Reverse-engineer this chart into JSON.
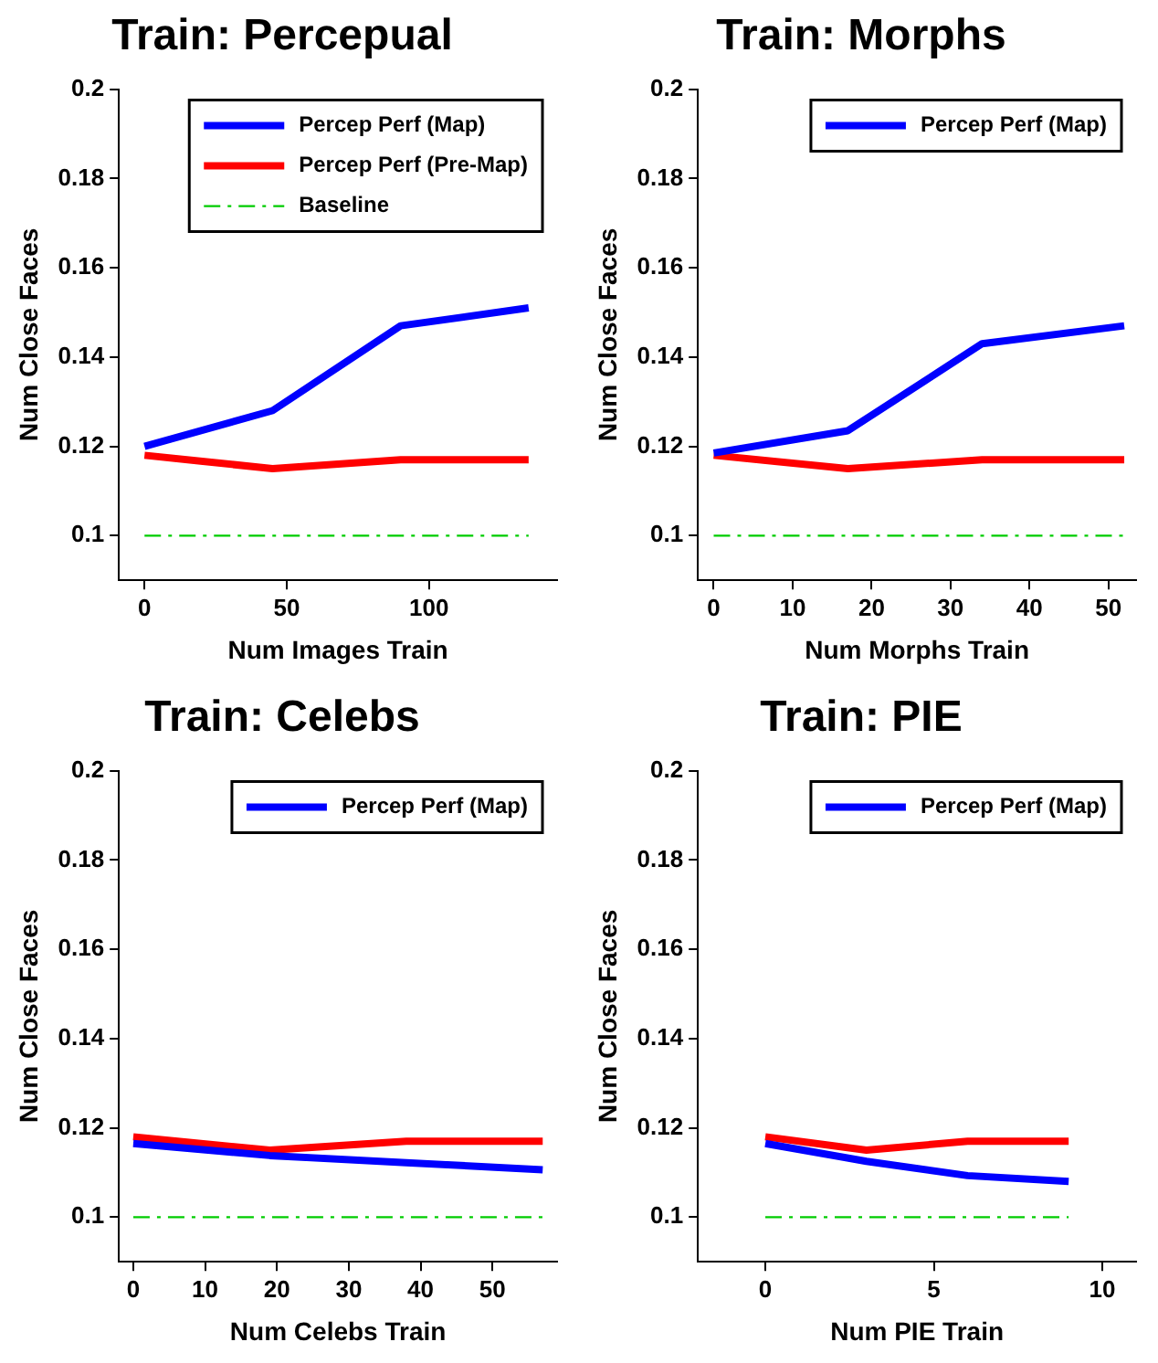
{
  "chart_data": [
    {
      "type": "line",
      "title": "Train: Percepual",
      "xlabel": "Num Images Train",
      "ylabel": "Num Close Faces",
      "xlim": [
        -9,
        145
      ],
      "xticks": [
        0,
        50,
        100
      ],
      "ylim": [
        0.09,
        0.2
      ],
      "yticks": [
        0.1,
        0.12,
        0.14,
        0.16,
        0.18,
        0.2
      ],
      "grid": false,
      "legend": "top right",
      "marker": "none",
      "series": [
        {
          "name": "Percep Perf (Map)",
          "color": "#0000ff",
          "x": [
            0,
            45,
            90,
            135
          ],
          "values": [
            0.12,
            0.128,
            0.147,
            0.151
          ]
        },
        {
          "name": "Percep Perf (Pre-Map)",
          "color": "#ff0000",
          "x": [
            0,
            45,
            90,
            135
          ],
          "values": [
            0.118,
            0.115,
            0.117,
            0.117
          ]
        },
        {
          "name": "Baseline",
          "color": "#00cc00",
          "x": [
            0,
            135
          ],
          "values": [
            0.1,
            0.1
          ],
          "line_style": "dashed"
        }
      ]
    },
    {
      "type": "line",
      "title": "Train: Morphs",
      "xlabel": "Num Morphs Train",
      "ylabel": "Num Close Faces",
      "xlim": [
        -2,
        53.5
      ],
      "xticks": [
        0,
        10,
        20,
        30,
        40,
        50
      ],
      "ylim": [
        0.09,
        0.2
      ],
      "yticks": [
        0.1,
        0.12,
        0.14,
        0.16,
        0.18,
        0.2
      ],
      "grid": false,
      "legend": "top right",
      "marker": "none",
      "series": [
        {
          "name": "Percep Perf (Map)",
          "color": "#0000ff",
          "x": [
            0,
            17,
            34,
            52
          ],
          "values": [
            0.1185,
            0.1235,
            0.143,
            0.147
          ]
        },
        {
          "color": "#ff0000",
          "x": [
            0,
            17,
            34,
            52
          ],
          "values": [
            0.118,
            0.115,
            0.117,
            0.117
          ]
        },
        {
          "color": "#00cc00",
          "x": [
            0,
            52
          ],
          "values": [
            0.1,
            0.1
          ],
          "line_style": "dashed"
        }
      ]
    },
    {
      "type": "line",
      "title": "Train: Celebs",
      "xlabel": "Num Celebs Train",
      "ylabel": "Num Close Faces",
      "xlim": [
        -2,
        59
      ],
      "xticks": [
        0,
        10,
        20,
        30,
        40,
        50
      ],
      "ylim": [
        0.09,
        0.2
      ],
      "yticks": [
        0.1,
        0.12,
        0.14,
        0.16,
        0.18,
        0.2
      ],
      "grid": false,
      "legend": "top right",
      "marker": "none",
      "series": [
        {
          "name": "Percep Perf (Map)",
          "color": "#0000ff",
          "x": [
            0,
            19,
            38,
            57
          ],
          "values": [
            0.1165,
            0.1138,
            0.1122,
            0.1106
          ]
        },
        {
          "color": "#ff0000",
          "x": [
            0,
            19,
            38,
            57
          ],
          "values": [
            0.118,
            0.115,
            0.117,
            0.117
          ]
        },
        {
          "color": "#00cc00",
          "x": [
            0,
            57
          ],
          "values": [
            0.1,
            0.1
          ],
          "line_style": "dashed"
        }
      ]
    },
    {
      "type": "line",
      "title": "Train: PIE",
      "xlabel": "Num PIE Train",
      "ylabel": "Num Close Faces",
      "xlim": [
        -2,
        11
      ],
      "xticks": [
        0,
        5,
        10
      ],
      "ylim": [
        0.09,
        0.2
      ],
      "yticks": [
        0.1,
        0.12,
        0.14,
        0.16,
        0.18,
        0.2
      ],
      "grid": false,
      "legend": "top right",
      "marker": "none",
      "series": [
        {
          "name": "Percep Perf (Map)",
          "color": "#0000ff",
          "x": [
            0,
            3,
            6,
            9
          ],
          "values": [
            0.1165,
            0.1125,
            0.1093,
            0.108
          ]
        },
        {
          "color": "#ff0000",
          "x": [
            0,
            3,
            6,
            9
          ],
          "values": [
            0.118,
            0.115,
            0.117,
            0.117
          ]
        },
        {
          "color": "#00cc00",
          "x": [
            0,
            9
          ],
          "values": [
            0.1,
            0.1
          ],
          "line_style": "dashed"
        }
      ]
    }
  ]
}
